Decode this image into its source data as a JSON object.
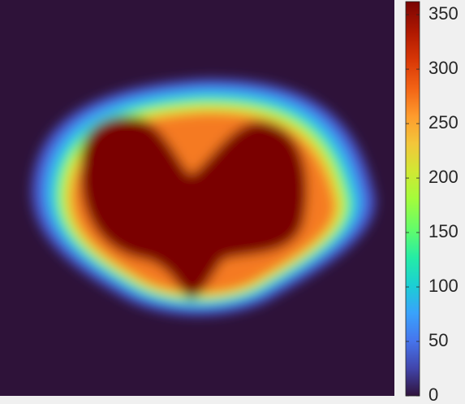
{
  "chart_data": {
    "type": "heatmap",
    "clim": [
      0,
      362
    ],
    "cticks": [
      0,
      50,
      100,
      150,
      200,
      250,
      300,
      350
    ]
  }
}
